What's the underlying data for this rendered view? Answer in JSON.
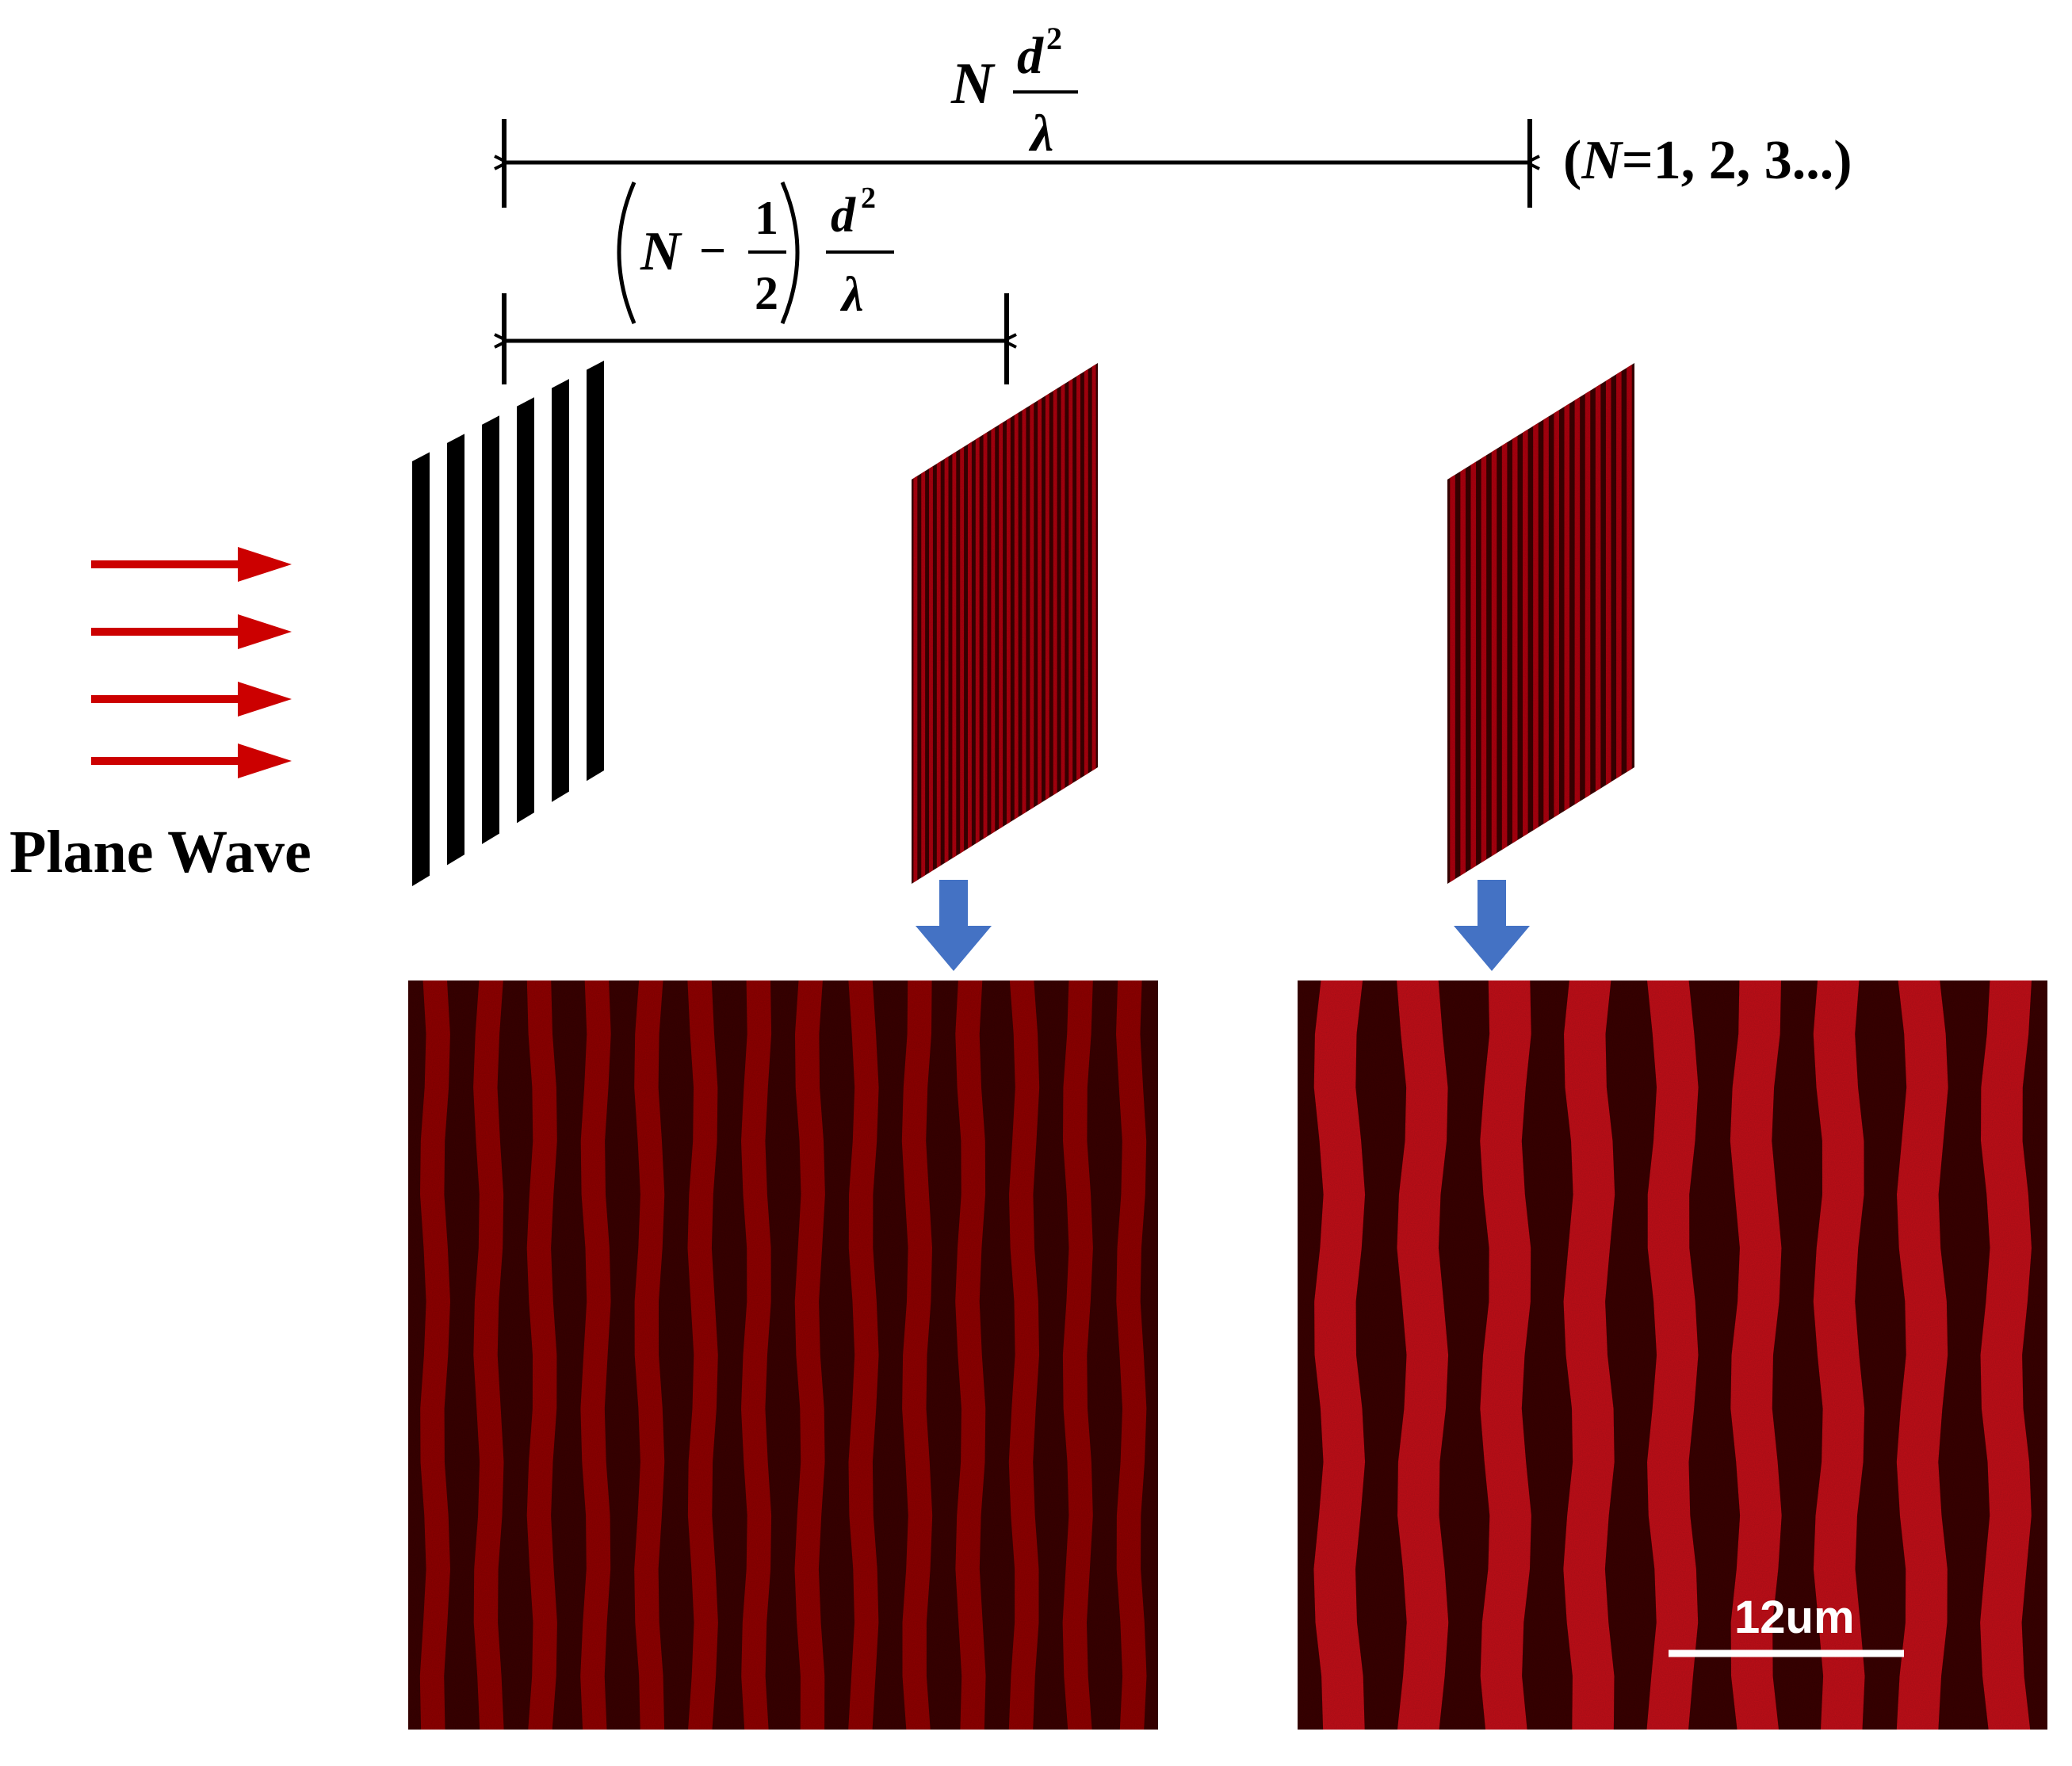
{
  "formulas": {
    "full_distance": {
      "N": "N",
      "numerator": "d",
      "exponent": "2",
      "denominator": "λ"
    },
    "half_distance": {
      "N": "N",
      "minus": "−",
      "half_num": "1",
      "half_den": "2",
      "numerator": "d",
      "exponent": "2",
      "denominator": "λ"
    },
    "condition": {
      "open": "(",
      "N": "N",
      "rest": "=1, 2, 3...)"
    }
  },
  "labels": {
    "plane_wave": "Plane Wave",
    "scale_bar": "12um"
  },
  "icons": {
    "incident_arrows": "arrow-right-icon",
    "down_arrows": "arrow-down-icon"
  },
  "colors": {
    "incident_arrow": "#cc0000",
    "down_arrow": "#4472c4",
    "dimension_line": "#000000",
    "fringe_dark": "#3a0006",
    "fringe_bright": "#d4151f"
  },
  "grating": {
    "bars": 6
  },
  "fringes": {
    "half_plane_periods": 14,
    "full_plane_periods": 9
  }
}
